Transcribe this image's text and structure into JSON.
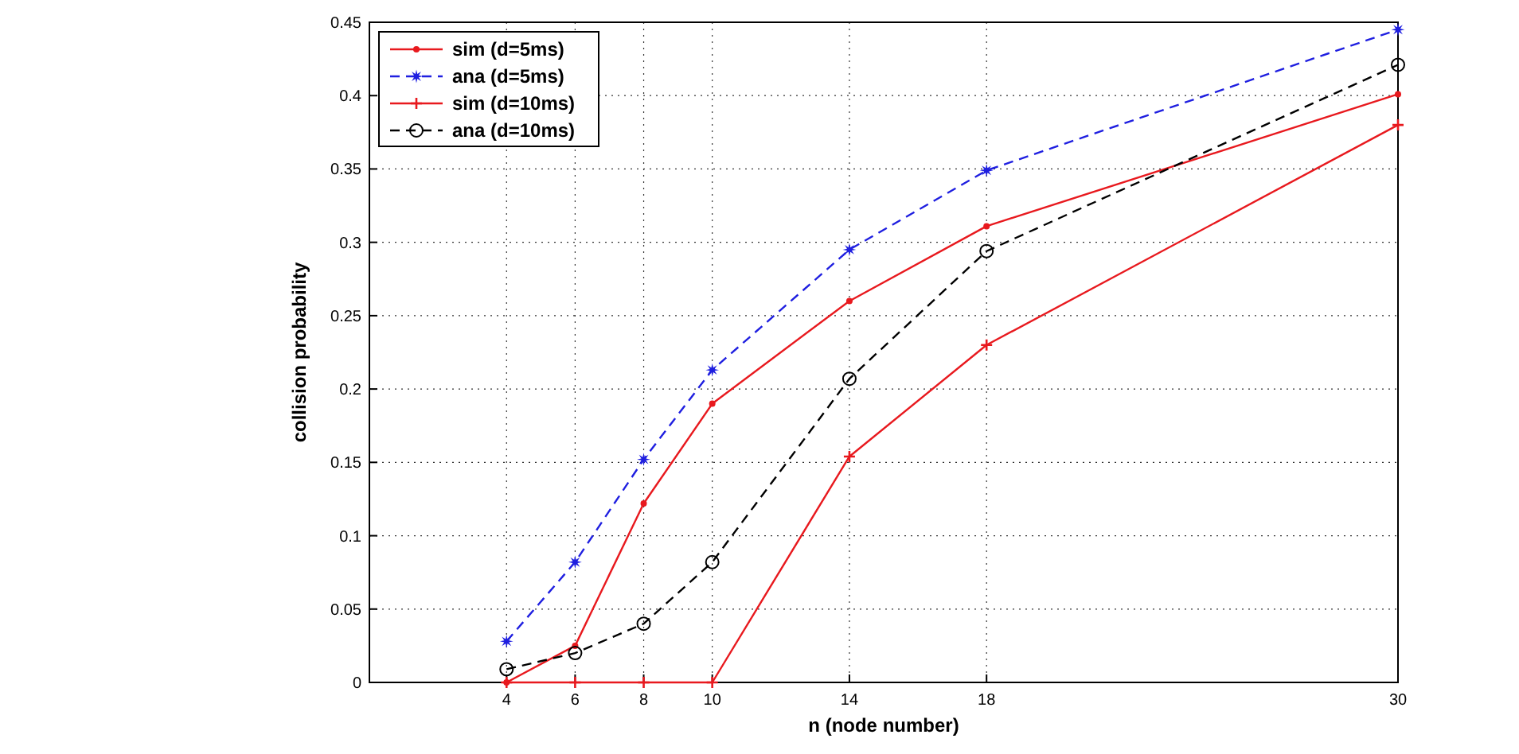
{
  "chart_data": {
    "type": "line",
    "xlabel": "n (node number)",
    "ylabel": "collision probability",
    "x": [
      4,
      6,
      8,
      10,
      14,
      18,
      30
    ],
    "series": [
      {
        "name": "sim (d=5ms)",
        "color": "#e8191e",
        "values": [
          0,
          0.025,
          0.122,
          0.19,
          0.26,
          0.311,
          0.401
        ],
        "marker": "circle",
        "line_style": "solid"
      },
      {
        "name": "ana (d=5ms)",
        "color": "#1f1fe0",
        "values": [
          0.028,
          0.082,
          0.152,
          0.213,
          0.295,
          0.349,
          0.445
        ],
        "marker": "star",
        "line_style": "dashed"
      },
      {
        "name": "sim (d=10ms)",
        "color": "#e8191e",
        "values": [
          0,
          0,
          0,
          0,
          0.154,
          0.23,
          0.38
        ],
        "marker": "cross",
        "line_style": "solid"
      },
      {
        "name": "ana (d=10ms)",
        "color": "#000000",
        "values": [
          0.009,
          0.02,
          0.04,
          0.082,
          0.207,
          0.294,
          0.421
        ],
        "marker": "circle",
        "line_style": "dashed"
      }
    ],
    "xlim": [
      0,
      30
    ],
    "xticks": [
      4,
      6,
      8,
      10,
      14,
      18,
      30
    ],
    "ylim": [
      0,
      0.45
    ],
    "yticks": [
      0,
      0.05,
      0.1,
      0.15,
      0.2,
      0.25,
      0.3,
      0.35,
      0.4,
      0.45
    ],
    "grid": true,
    "legend": "top left"
  }
}
